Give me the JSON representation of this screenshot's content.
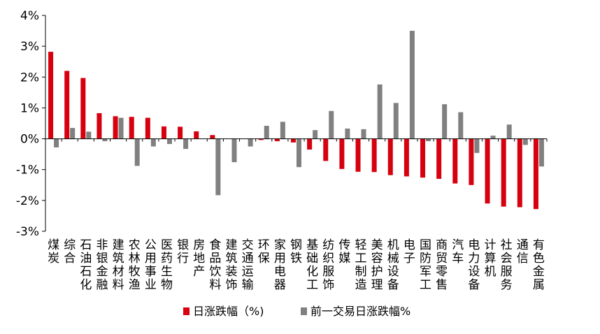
{
  "chart_data": {
    "type": "bar",
    "categories": [
      "煤炭",
      "综合",
      "石油石化",
      "非银金融",
      "建筑材料",
      "农林牧渔",
      "公用事业",
      "医药生物",
      "银行",
      "房地产",
      "食品饮料",
      "建筑装饰",
      "交通运输",
      "环保",
      "家用电器",
      "钢铁",
      "基础化工",
      "纺织服饰",
      "传媒",
      "轻工制造",
      "美容护理",
      "机械设备",
      "电子",
      "国防军工",
      "商贸零售",
      "汽车",
      "电力设备",
      "计算机",
      "社会服务",
      "通信",
      "有色金属"
    ],
    "series": [
      {
        "name": "日涨跌幅（%)",
        "color": "#d7000f",
        "values": [
          2.82,
          2.2,
          1.97,
          0.83,
          0.73,
          0.71,
          0.68,
          0.4,
          0.39,
          0.24,
          0.12,
          0.0,
          0.0,
          -0.04,
          -0.08,
          -0.12,
          -0.35,
          -0.72,
          -0.98,
          -1.07,
          -1.08,
          -1.18,
          -1.22,
          -1.26,
          -1.3,
          -1.45,
          -1.5,
          -2.1,
          -2.2,
          -2.22,
          -2.28
        ]
      },
      {
        "name": "前一交易日涨跌幅%",
        "color": "#808080",
        "values": [
          -0.28,
          0.35,
          0.23,
          -0.08,
          0.68,
          -0.88,
          -0.25,
          -0.17,
          -0.33,
          0.0,
          -1.83,
          -0.76,
          -0.25,
          0.42,
          0.55,
          -0.92,
          0.28,
          0.9,
          0.33,
          0.31,
          1.76,
          1.16,
          3.5,
          -0.08,
          1.12,
          0.86,
          -0.46,
          0.1,
          0.46,
          -0.2,
          -0.9
        ]
      }
    ],
    "yticks": [
      "4%",
      "3%",
      "2%",
      "1%",
      "0%",
      "-1%",
      "-2%",
      "-3%"
    ],
    "ylim": [
      -3,
      4
    ],
    "title": "",
    "xlabel": "",
    "ylabel": "",
    "grid": false,
    "legend_position": "bottom-center"
  }
}
